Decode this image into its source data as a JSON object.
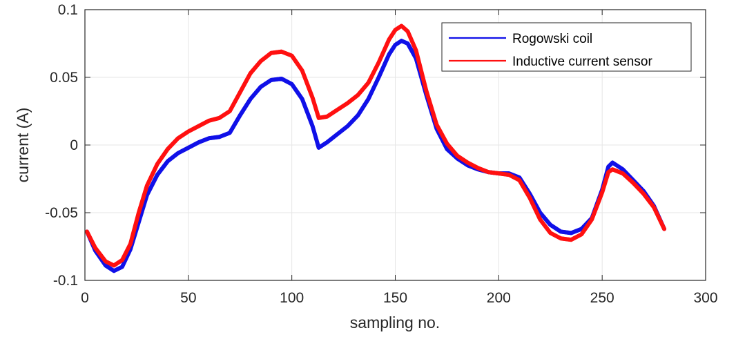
{
  "chart_data": {
    "type": "line",
    "title": "",
    "xlabel": "sampling no.",
    "ylabel": "current (A)",
    "xlim": [
      0,
      300
    ],
    "ylim": [
      -0.1,
      0.1
    ],
    "xticks": [
      0,
      50,
      100,
      150,
      200,
      250,
      300
    ],
    "yticks": [
      -0.1,
      -0.05,
      0,
      0.05,
      0.1
    ],
    "xtick_labels": [
      "0",
      "50",
      "100",
      "150",
      "200",
      "250",
      "300"
    ],
    "ytick_labels": [
      "-0.1",
      "-0.05",
      "0",
      "0.05",
      "0.1"
    ],
    "grid": true,
    "legend_position": "top-right",
    "series": [
      {
        "name": "Rogowski coil",
        "color": "#1010e8",
        "x": [
          1,
          5,
          10,
          14,
          18,
          22,
          26,
          30,
          35,
          40,
          45,
          50,
          55,
          60,
          65,
          70,
          75,
          80,
          85,
          90,
          95,
          100,
          105,
          110,
          113,
          117,
          122,
          127,
          132,
          137,
          142,
          147,
          150,
          153,
          156,
          160,
          165,
          170,
          175,
          180,
          185,
          190,
          195,
          200,
          205,
          210,
          215,
          220,
          225,
          230,
          235,
          240,
          245,
          250,
          253,
          255,
          260,
          265,
          270,
          275,
          280
        ],
        "y": [
          -0.064,
          -0.078,
          -0.089,
          -0.093,
          -0.09,
          -0.077,
          -0.057,
          -0.037,
          -0.022,
          -0.012,
          -0.006,
          -0.002,
          0.002,
          0.005,
          0.006,
          0.009,
          0.022,
          0.034,
          0.043,
          0.048,
          0.049,
          0.045,
          0.034,
          0.014,
          -0.002,
          0.002,
          0.008,
          0.014,
          0.022,
          0.034,
          0.05,
          0.067,
          0.074,
          0.077,
          0.075,
          0.064,
          0.037,
          0.012,
          -0.003,
          -0.01,
          -0.015,
          -0.018,
          -0.02,
          -0.021,
          -0.021,
          -0.024,
          -0.036,
          -0.05,
          -0.059,
          -0.064,
          -0.065,
          -0.062,
          -0.054,
          -0.033,
          -0.016,
          -0.013,
          -0.018,
          -0.026,
          -0.034,
          -0.045,
          -0.062
        ]
      },
      {
        "name": "Inductive current sensor",
        "color": "#ff1010",
        "x": [
          1,
          5,
          10,
          14,
          18,
          22,
          26,
          30,
          35,
          40,
          45,
          50,
          55,
          60,
          65,
          70,
          75,
          80,
          85,
          90,
          95,
          100,
          105,
          110,
          113,
          117,
          122,
          127,
          132,
          137,
          142,
          147,
          150,
          153,
          156,
          160,
          165,
          170,
          175,
          180,
          185,
          190,
          195,
          200,
          205,
          210,
          215,
          220,
          225,
          230,
          235,
          240,
          245,
          250,
          253,
          255,
          260,
          265,
          270,
          275,
          280
        ],
        "y": [
          -0.064,
          -0.076,
          -0.086,
          -0.089,
          -0.085,
          -0.073,
          -0.05,
          -0.03,
          -0.014,
          -0.003,
          0.005,
          0.01,
          0.014,
          0.018,
          0.02,
          0.025,
          0.039,
          0.053,
          0.062,
          0.068,
          0.069,
          0.066,
          0.055,
          0.035,
          0.02,
          0.021,
          0.026,
          0.031,
          0.037,
          0.046,
          0.061,
          0.078,
          0.085,
          0.088,
          0.084,
          0.07,
          0.04,
          0.015,
          0.001,
          -0.008,
          -0.013,
          -0.017,
          -0.02,
          -0.021,
          -0.022,
          -0.026,
          -0.039,
          -0.055,
          -0.065,
          -0.069,
          -0.07,
          -0.066,
          -0.055,
          -0.035,
          -0.02,
          -0.018,
          -0.021,
          -0.028,
          -0.036,
          -0.046,
          -0.062
        ]
      }
    ]
  }
}
